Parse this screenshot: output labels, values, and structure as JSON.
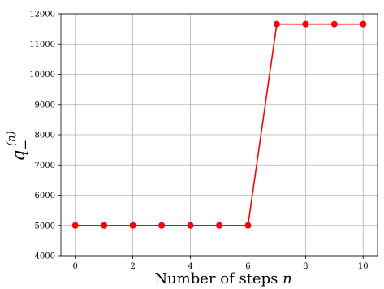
{
  "chart_data": {
    "type": "line",
    "title": "",
    "xlabel": "Number of steps n",
    "ylabel": "q_-^(n)",
    "x": [
      0,
      1,
      2,
      3,
      4,
      5,
      6,
      7,
      8,
      9,
      10
    ],
    "series": [
      {
        "values": [
          5000,
          5000,
          5000,
          5000,
          5000,
          5000,
          5000,
          11660,
          11660,
          11660,
          11660
        ],
        "color": "#ff0000"
      }
    ],
    "xlim": [
      -0.5,
      10.5
    ],
    "ylim": [
      4000,
      12000
    ],
    "xticks": [
      0,
      2,
      4,
      6,
      8,
      10
    ],
    "yticks": [
      4000,
      5000,
      6000,
      7000,
      8000,
      9000,
      10000,
      11000,
      12000
    ],
    "grid": true,
    "colors": {
      "line": "#ff0000",
      "grid": "#b0b0b0",
      "axis": "#000000"
    }
  }
}
